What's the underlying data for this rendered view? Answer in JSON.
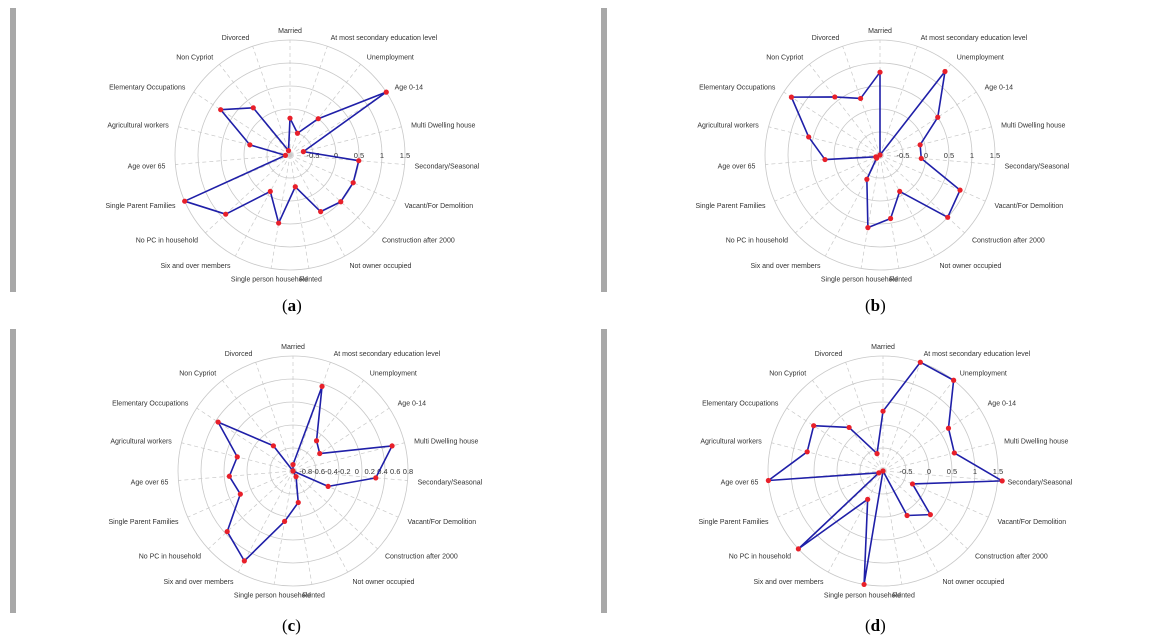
{
  "figure": {
    "panels": [
      {
        "caption_open": "(",
        "caption_letter": "a",
        "caption_close": ")"
      },
      {
        "caption_open": "(",
        "caption_letter": "b",
        "caption_close": ")"
      },
      {
        "caption_open": "(",
        "caption_letter": "c",
        "caption_close": ")"
      },
      {
        "caption_open": "(",
        "caption_letter": "d",
        "caption_close": ")"
      }
    ]
  },
  "colors": {
    "line": "#1f1fa8",
    "marker": "#e8202a",
    "grid": "#c8c8c8",
    "side_bar": "#a8a8a8"
  },
  "chart_data": [
    {
      "type": "radar",
      "rlim": [
        -1,
        1.5
      ],
      "ticks": [
        -0.5,
        0,
        0.5,
        1,
        1.5
      ],
      "tick_labels": [
        "-0.5",
        "0",
        "0.5",
        "1",
        "1.5"
      ],
      "categories": [
        "Married",
        "At most secondary education level",
        "Unemployment",
        "Age 0-14",
        "Multi Dwelling house",
        "Secondary/Seasonal",
        "Vacant/For Demolition",
        "Construction after 2000",
        "Not owner occupied",
        "Rented",
        "Single person household",
        "Six and over members",
        "No PC in household",
        "Single Parent Families",
        "Age over 65",
        "Agricultural workers",
        "Elementary Occupations",
        "Non Cypriot",
        "Divorced"
      ],
      "series": [
        {
          "values": [
            -0.2,
            -0.5,
            0.0,
            1.5,
            -0.7,
            0.5,
            0.5,
            0.5,
            0.4,
            -0.3,
            0.5,
            -0.1,
            0.9,
            1.5,
            -0.9,
            -0.1,
            0.8,
            0.3,
            -0.9
          ]
        }
      ]
    },
    {
      "type": "radar",
      "rlim": [
        -1,
        1.5
      ],
      "ticks": [
        -0.5,
        0,
        0.5,
        1,
        1.5
      ],
      "tick_labels": [
        "-0.5",
        "0",
        "0.5",
        "1",
        "1.5"
      ],
      "categories": [
        "Married",
        "At most secondary education level",
        "Unemployment",
        "Age 0-14",
        "Multi Dwelling house",
        "Secondary/Seasonal",
        "Vacant/For Demolition",
        "Construction after 2000",
        "Not owner occupied",
        "Rented",
        "Single person household",
        "Six and over members",
        "No PC in household",
        "Single Parent Families",
        "Age over 65",
        "Agricultural workers",
        "Elementary Occupations",
        "Non Cypriot",
        "Divorced"
      ],
      "series": [
        {
          "values": [
            0.8,
            -1.0,
            1.3,
            0.5,
            -0.1,
            -0.1,
            0.9,
            1.0,
            -0.1,
            0.4,
            0.6,
            -0.4,
            -0.9,
            -0.9,
            0.2,
            0.6,
            1.3,
            0.6,
            0.3
          ]
        }
      ]
    },
    {
      "type": "radar",
      "rlim": [
        -1,
        0.8
      ],
      "ticks": [
        -0.8,
        -0.6,
        -0.4,
        -0.2,
        0,
        0.2,
        0.4,
        0.6,
        0.8
      ],
      "tick_labels": [
        "-0.8",
        "-0.6",
        "-0.4",
        "-0.2",
        "0",
        "0.2",
        "0.4",
        "0.6",
        "0.8"
      ],
      "categories": [
        "Married",
        "At most secondary education level",
        "Unemployment",
        "Age 0-14",
        "Multi Dwelling house",
        "Secondary/Seasonal",
        "Vacant/For Demolition",
        "Construction after 2000",
        "Not owner occupied",
        "Rented",
        "Single person household",
        "Six and over members",
        "No PC in household",
        "Single Parent Families",
        "Age over 65",
        "Agricultural workers",
        "Elementary Occupations",
        "Non Cypriot",
        "Divorced"
      ],
      "series": [
        {
          "values": [
            -0.9,
            0.4,
            -0.4,
            -0.5,
            0.6,
            0.3,
            -0.4,
            -1.0,
            -0.9,
            -0.5,
            -0.2,
            0.6,
            0.4,
            -0.1,
            0.0,
            -0.1,
            0.4,
            -0.5,
            -1.0
          ]
        }
      ]
    },
    {
      "type": "radar",
      "rlim": [
        -1,
        1.5
      ],
      "ticks": [
        -0.5,
        0,
        0.5,
        1,
        1.5
      ],
      "tick_labels": [
        "-0.5",
        "0",
        "0.5",
        "1",
        "1.5"
      ],
      "categories": [
        "Married",
        "At most secondary education level",
        "Unemployment",
        "Age 0-14",
        "Multi Dwelling house",
        "Secondary/Seasonal",
        "Vacant/For Demolition",
        "Construction after 2000",
        "Not owner occupied",
        "Rented",
        "Single person household",
        "Six and over members",
        "No PC in household",
        "Single Parent Families",
        "Age over 65",
        "Agricultural workers",
        "Elementary Occupations",
        "Non Cypriot",
        "Divorced"
      ],
      "series": [
        {
          "values": [
            0.3,
            1.5,
            1.5,
            0.7,
            0.6,
            1.6,
            -0.3,
            0.4,
            0.1,
            -1.0,
            1.5,
            -0.3,
            1.5,
            -0.9,
            1.5,
            0.7,
            0.8,
            0.2,
            -0.6
          ]
        }
      ]
    }
  ]
}
